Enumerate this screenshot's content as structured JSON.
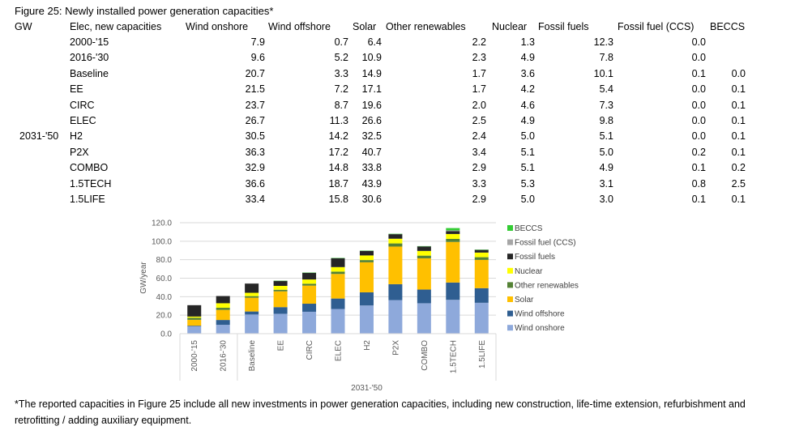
{
  "figure": {
    "title": "Figure 25: Newly installed power generation capacities*",
    "footnote": "*The reported capacities in Figure 25 include all new investments in power generation capacities, including new construction, life-time extension, refurbishment and retrofitting / adding auxiliary equipment."
  },
  "table": {
    "unit_label": "GW",
    "row_header": "Elec, new capacities",
    "group_label": "2031-'50",
    "columns": [
      "Wind onshore",
      "Wind offshore",
      "Solar",
      "Other renewables",
      "Nuclear",
      "Fossil fuels",
      "Fossil fuel (CCS)",
      "BECCS"
    ],
    "rows": [
      {
        "label": "2000-'15",
        "values": [
          "7.9",
          "0.7",
          "6.4",
          "2.2",
          "1.3",
          "12.3",
          "0.0",
          ""
        ]
      },
      {
        "label": "2016-'30",
        "values": [
          "9.6",
          "5.2",
          "10.9",
          "2.3",
          "4.9",
          "7.8",
          "0.0",
          ""
        ]
      },
      {
        "label": "Baseline",
        "values": [
          "20.7",
          "3.3",
          "14.9",
          "1.7",
          "3.6",
          "10.1",
          "0.1",
          "0.0"
        ]
      },
      {
        "label": "EE",
        "values": [
          "21.5",
          "7.2",
          "17.1",
          "1.7",
          "4.2",
          "5.4",
          "0.0",
          "0.1"
        ]
      },
      {
        "label": "CIRC",
        "values": [
          "23.7",
          "8.7",
          "19.6",
          "2.0",
          "4.6",
          "7.3",
          "0.0",
          "0.1"
        ]
      },
      {
        "label": "ELEC",
        "values": [
          "26.7",
          "11.3",
          "26.6",
          "2.5",
          "4.9",
          "9.8",
          "0.0",
          "0.1"
        ]
      },
      {
        "label": "H2",
        "values": [
          "30.5",
          "14.2",
          "32.5",
          "2.4",
          "5.0",
          "5.1",
          "0.0",
          "0.1"
        ]
      },
      {
        "label": "P2X",
        "values": [
          "36.3",
          "17.2",
          "40.7",
          "3.4",
          "5.1",
          "5.0",
          "0.2",
          "0.1"
        ]
      },
      {
        "label": "COMBO",
        "values": [
          "32.9",
          "14.8",
          "33.8",
          "2.9",
          "5.1",
          "4.9",
          "0.1",
          "0.2"
        ]
      },
      {
        "label": "1.5TECH",
        "values": [
          "36.6",
          "18.7",
          "43.9",
          "3.3",
          "5.3",
          "3.1",
          "0.8",
          "2.5"
        ]
      },
      {
        "label": "1.5LIFE",
        "values": [
          "33.4",
          "15.8",
          "30.6",
          "2.9",
          "5.0",
          "3.0",
          "0.1",
          "0.1"
        ]
      }
    ]
  },
  "chart_data": {
    "type": "bar",
    "stacked": true,
    "title": "",
    "xlabel": "2031-'50",
    "ylabel": "GW/year",
    "ylim": [
      0,
      120
    ],
    "y_ticks": [
      "0.0",
      "20.0",
      "40.0",
      "60.0",
      "80.0",
      "100.0",
      "120.0"
    ],
    "grid": true,
    "legend_position": "right",
    "categories": [
      "2000-'15",
      "2016-'30",
      "Baseline",
      "EE",
      "CIRC",
      "ELEC",
      "H2",
      "P2X",
      "COMBO",
      "1.5TECH",
      "1.5LIFE"
    ],
    "series": [
      {
        "name": "Wind onshore",
        "color": "#8EA9DB",
        "values": [
          7.9,
          9.6,
          20.7,
          21.5,
          23.7,
          26.7,
          30.5,
          36.3,
          32.9,
          36.6,
          33.4
        ]
      },
      {
        "name": "Wind offshore",
        "color": "#2F5E91",
        "values": [
          0.7,
          5.2,
          3.3,
          7.2,
          8.7,
          11.3,
          14.2,
          17.2,
          14.8,
          18.7,
          15.8
        ]
      },
      {
        "name": "Solar",
        "color": "#FFC000",
        "values": [
          6.4,
          10.9,
          14.9,
          17.1,
          19.6,
          26.6,
          32.5,
          40.7,
          33.8,
          43.9,
          30.6
        ]
      },
      {
        "name": "Other renewables",
        "color": "#548235",
        "values": [
          2.2,
          2.3,
          1.7,
          1.7,
          2.0,
          2.5,
          2.4,
          3.4,
          2.9,
          3.3,
          2.9
        ]
      },
      {
        "name": "Nuclear",
        "color": "#FFFF00",
        "values": [
          1.3,
          4.9,
          3.6,
          4.2,
          4.6,
          4.9,
          5.0,
          5.1,
          5.1,
          5.3,
          5.0
        ]
      },
      {
        "name": "Fossil fuels",
        "color": "#262626",
        "values": [
          12.3,
          7.8,
          10.1,
          5.4,
          7.3,
          9.8,
          5.1,
          5.0,
          4.9,
          3.1,
          3.0
        ]
      },
      {
        "name": "Fossil fuel (CCS)",
        "color": "#A6A6A6",
        "values": [
          0.0,
          0.0,
          0.1,
          0.0,
          0.0,
          0.0,
          0.0,
          0.2,
          0.1,
          0.8,
          0.1
        ]
      },
      {
        "name": "BECCS",
        "color": "#33CC33",
        "values": [
          0,
          0,
          0.0,
          0.1,
          0.1,
          0.1,
          0.1,
          0.1,
          0.2,
          2.5,
          0.1
        ]
      }
    ],
    "legend_order": [
      "BECCS",
      "Fossil fuel (CCS)",
      "Fossil fuels",
      "Nuclear",
      "Other renewables",
      "Solar",
      "Wind offshore",
      "Wind onshore"
    ]
  }
}
